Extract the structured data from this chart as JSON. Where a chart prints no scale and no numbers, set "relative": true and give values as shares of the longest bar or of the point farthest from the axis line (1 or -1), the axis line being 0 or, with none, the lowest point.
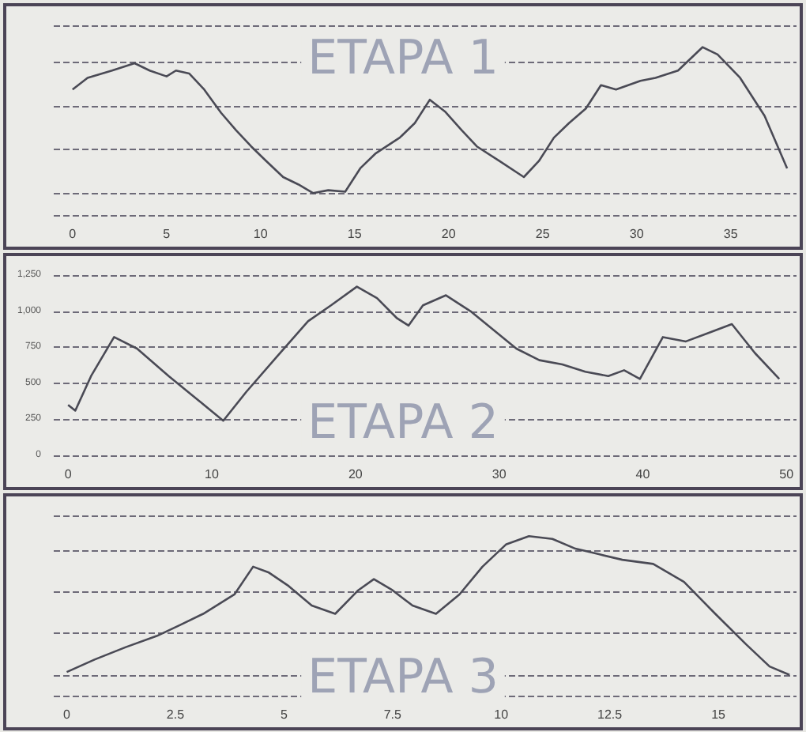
{
  "chart_data": [
    {
      "type": "line",
      "title": "ETAPA 1",
      "relative": true,
      "grid": "y",
      "marker": "none",
      "line_style": "solid",
      "tick_labels": "x",
      "x": [
        0,
        0.8,
        2.1,
        3.3,
        4.1,
        5.0,
        5.5,
        6.2,
        7.0,
        7.9,
        8.7,
        9.5,
        10.3,
        11.2,
        12.0,
        12.8,
        13.6,
        14.5,
        15.3,
        16.1,
        17.4,
        18.2,
        19.0,
        19.8,
        20.7,
        21.5,
        22.7,
        24.0,
        24.8,
        25.6,
        26.4,
        27.3,
        28.1,
        28.9,
        30.2,
        31.0,
        32.2,
        33.5,
        34.3,
        35.5,
        36.8,
        38.0
      ],
      "series": [
        {
          "color": "#4a4a55",
          "values": [
            0.71,
            0.79,
            0.84,
            0.89,
            0.84,
            0.8,
            0.84,
            0.82,
            0.71,
            0.55,
            0.43,
            0.32,
            0.22,
            0.11,
            0.06,
            0,
            0.02,
            0.01,
            0.17,
            0.27,
            0.38,
            0.48,
            0.64,
            0.56,
            0.43,
            0.32,
            0.22,
            0.11,
            0.22,
            0.38,
            0.48,
            0.58,
            0.74,
            0.71,
            0.77,
            0.79,
            0.84,
            1,
            0.95,
            0.79,
            0.53,
            0.17
          ]
        }
      ],
      "xlim": [
        -1,
        38.5
      ],
      "xticks": [
        0,
        5,
        10,
        15,
        20,
        25,
        30,
        35
      ]
    },
    {
      "type": "line",
      "title": "ETAPA 2",
      "grid": "y",
      "marker": "none",
      "line_style": "solid",
      "x": [
        0,
        0.5,
        1.6,
        3.2,
        4.8,
        7.0,
        8.6,
        10.8,
        12.4,
        14.5,
        16.7,
        18.3,
        20.1,
        21.5,
        22.9,
        23.7,
        24.7,
        26.3,
        28.0,
        29.6,
        31.2,
        32.8,
        34.4,
        36.0,
        37.6,
        38.7,
        39.8,
        41.4,
        43.0,
        44.6,
        46.2,
        47.8,
        49.5
      ],
      "series": [
        {
          "color": "#4a4a55",
          "values": [
            350,
            310,
            550,
            820,
            740,
            550,
            420,
            240,
            440,
            680,
            930,
            1040,
            1170,
            1090,
            950,
            900,
            1040,
            1110,
            1000,
            870,
            740,
            660,
            630,
            580,
            550,
            590,
            530,
            820,
            790,
            850,
            910,
            710,
            530
          ]
        }
      ],
      "xlim": [
        -1,
        50.7
      ],
      "xticks": [
        0,
        10,
        20,
        30,
        40,
        50
      ],
      "ylim": [
        0,
        1250
      ],
      "yticks": [
        0,
        250,
        500,
        750,
        {
          "value": 1000,
          "label": "1,000"
        },
        {
          "value": 1250,
          "label": "1,250"
        }
      ]
    },
    {
      "type": "line",
      "title": "ETAPA 3",
      "relative": true,
      "grid": "y",
      "marker": "none",
      "line_style": "solid",
      "tick_labels": "x",
      "x": [
        0,
        0.64,
        1.36,
        2.07,
        2.61,
        3.14,
        3.86,
        4.29,
        4.64,
        5.11,
        5.64,
        6.18,
        6.71,
        7.07,
        7.5,
        7.96,
        8.5,
        9.04,
        9.57,
        10.11,
        10.64,
        11.18,
        11.71,
        12.25,
        12.79,
        13.5,
        14.21,
        14.93,
        15.64,
        16.18,
        16.64
      ],
      "series": [
        {
          "color": "#4a4a55",
          "values": [
            0.02,
            0.11,
            0.2,
            0.28,
            0.36,
            0.44,
            0.58,
            0.78,
            0.74,
            0.64,
            0.5,
            0.44,
            0.61,
            0.69,
            0.61,
            0.5,
            0.44,
            0.58,
            0.78,
            0.94,
            1,
            0.98,
            0.91,
            0.87,
            0.83,
            0.8,
            0.67,
            0.44,
            0.22,
            0.06,
            0
          ]
        }
      ],
      "xlim": [
        -0.3,
        16.8
      ],
      "xticks": [
        0,
        2.5,
        5,
        7.5,
        10,
        12.5,
        15
      ]
    }
  ]
}
